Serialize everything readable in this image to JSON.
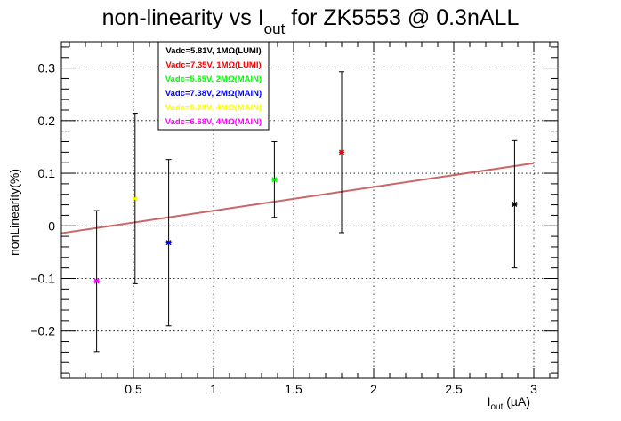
{
  "chart_data": {
    "type": "scatter",
    "title": {
      "before": "non-linearity vs I",
      "sub": "out",
      "after": " for ZK5553 @ 0.3nALL"
    },
    "xlabel": {
      "main": "I",
      "sub": "out",
      "after": " (µA)"
    },
    "ylabel": "nonLinearity(%)",
    "xlim": [
      0.05,
      3.15
    ],
    "ylim": [
      -0.29,
      0.35
    ],
    "xticks": [
      {
        "value": 0.5,
        "label": "0.5"
      },
      {
        "value": 1.0,
        "label": "1"
      },
      {
        "value": 1.5,
        "label": "1.5"
      },
      {
        "value": 2.0,
        "label": "2"
      },
      {
        "value": 2.5,
        "label": "2.5"
      },
      {
        "value": 3.0,
        "label": "3"
      }
    ],
    "yticks": [
      {
        "value": -0.2,
        "label": "−0.2"
      },
      {
        "value": -0.1,
        "label": "−0.1"
      },
      {
        "value": 0.0,
        "label": "0"
      },
      {
        "value": 0.1,
        "label": "0.1"
      },
      {
        "value": 0.2,
        "label": "0.2"
      },
      {
        "value": 0.3,
        "label": "0.3"
      }
    ],
    "grid": true,
    "legend_position": "top-left",
    "series": [
      {
        "name": "Vadc=5.81V, 1MΩ(LUMI)",
        "color": "#000000",
        "x": 2.88,
        "y": 0.041,
        "err": 0.121
      },
      {
        "name": "Vadc=7.35V, 1MΩ(LUMI)",
        "color": "#ff0000",
        "x": 1.8,
        "y": 0.14,
        "err": 0.153
      },
      {
        "name": "Vadc=5.65V, 2MΩ(MAIN)",
        "color": "#00ff00",
        "x": 1.38,
        "y": 0.088,
        "err": 0.072
      },
      {
        "name": "Vadc=7.38V, 2MΩ(MAIN)",
        "color": "#0000ff",
        "x": 0.72,
        "y": -0.032,
        "err": 0.158
      },
      {
        "name": "Vadc=5.38V, 4MΩ(MAIN)",
        "color": "#ffff00",
        "x": 0.51,
        "y": 0.052,
        "err": 0.162
      },
      {
        "name": "Vadc=6.68V, 4MΩ(MAIN)",
        "color": "#ff00ff",
        "x": 0.27,
        "y": -0.105,
        "err": 0.134
      }
    ],
    "fit": {
      "color": "#cc6666",
      "points": [
        [
          0.05,
          -0.014
        ],
        [
          3.0,
          0.119
        ]
      ]
    }
  }
}
